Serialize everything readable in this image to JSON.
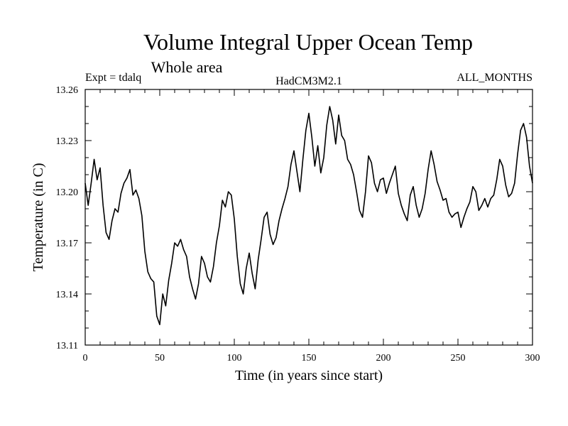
{
  "chart_data": {
    "type": "line",
    "title": "Volume Integral Upper Ocean Temp",
    "subtitle": "Whole area",
    "experiment_label": "Expt = tdalq",
    "model_label": "HadCM3M2.1",
    "months_label": "ALL_MONTHS",
    "xlabel": "Time (in years since start)",
    "ylabel": "Temperature (in C)",
    "xlim": [
      0,
      300
    ],
    "ylim": [
      13.11,
      13.26
    ],
    "xticks": [
      0,
      50,
      100,
      150,
      200,
      250,
      300
    ],
    "yticks": [
      13.11,
      13.14,
      13.17,
      13.2,
      13.23,
      13.26
    ],
    "xtick_labels": [
      "0",
      "50",
      "100",
      "150",
      "200",
      "250",
      "300"
    ],
    "ytick_labels": [
      "13.11",
      "13.14",
      "13.17",
      "13.20",
      "13.23",
      "13.26"
    ],
    "series": [
      {
        "name": "Volume Integral Upper Ocean Temp",
        "x": [
          0,
          2,
          4,
          6,
          8,
          10,
          12,
          14,
          16,
          18,
          20,
          22,
          24,
          26,
          28,
          30,
          32,
          34,
          36,
          38,
          40,
          42,
          44,
          46,
          48,
          50,
          52,
          54,
          56,
          58,
          60,
          62,
          64,
          66,
          68,
          70,
          72,
          74,
          76,
          78,
          80,
          82,
          84,
          86,
          88,
          90,
          92,
          94,
          96,
          98,
          100,
          102,
          104,
          106,
          108,
          110,
          112,
          114,
          116,
          118,
          120,
          122,
          124,
          126,
          128,
          130,
          132,
          134,
          136,
          138,
          140,
          142,
          144,
          146,
          148,
          150,
          152,
          154,
          156,
          158,
          160,
          162,
          164,
          166,
          168,
          170,
          172,
          174,
          176,
          178,
          180,
          182,
          184,
          186,
          188,
          190,
          192,
          194,
          196,
          198,
          200,
          202,
          204,
          206,
          208,
          210,
          212,
          214,
          216,
          218,
          220,
          222,
          224,
          226,
          228,
          230,
          232,
          234,
          236,
          238,
          240,
          242,
          244,
          246,
          248,
          250,
          252,
          254,
          256,
          258,
          260,
          262,
          264,
          266,
          268,
          270,
          272,
          274,
          276,
          278,
          280,
          282,
          284,
          286,
          288,
          290,
          292,
          294,
          296,
          298,
          300
        ],
        "values": [
          13.205,
          13.192,
          13.205,
          13.219,
          13.207,
          13.214,
          13.192,
          13.176,
          13.172,
          13.183,
          13.19,
          13.188,
          13.199,
          13.205,
          13.208,
          13.213,
          13.198,
          13.201,
          13.196,
          13.186,
          13.165,
          13.153,
          13.149,
          13.147,
          13.127,
          13.122,
          13.14,
          13.133,
          13.148,
          13.158,
          13.17,
          13.168,
          13.172,
          13.166,
          13.162,
          13.15,
          13.143,
          13.137,
          13.146,
          13.162,
          13.158,
          13.15,
          13.147,
          13.156,
          13.17,
          13.18,
          13.195,
          13.191,
          13.2,
          13.198,
          13.184,
          13.162,
          13.146,
          13.14,
          13.155,
          13.164,
          13.152,
          13.143,
          13.16,
          13.172,
          13.185,
          13.188,
          13.175,
          13.169,
          13.173,
          13.183,
          13.19,
          13.196,
          13.203,
          13.216,
          13.224,
          13.212,
          13.2,
          13.219,
          13.236,
          13.246,
          13.232,
          13.215,
          13.227,
          13.211,
          13.22,
          13.239,
          13.25,
          13.242,
          13.228,
          13.245,
          13.233,
          13.23,
          13.219,
          13.216,
          13.21,
          13.2,
          13.189,
          13.185,
          13.2,
          13.221,
          13.217,
          13.205,
          13.2,
          13.207,
          13.208,
          13.199,
          13.205,
          13.21,
          13.215,
          13.199,
          13.192,
          13.187,
          13.183,
          13.198,
          13.203,
          13.192,
          13.185,
          13.19,
          13.199,
          13.213,
          13.224,
          13.216,
          13.206,
          13.201,
          13.195,
          13.196,
          13.188,
          13.185,
          13.187,
          13.188,
          13.179,
          13.185,
          13.19,
          13.194,
          13.203,
          13.2,
          13.189,
          13.192,
          13.196,
          13.191,
          13.196,
          13.198,
          13.207,
          13.219,
          13.215,
          13.204,
          13.197,
          13.199,
          13.205,
          13.222,
          13.236,
          13.24,
          13.232,
          13.215,
          13.205
        ]
      }
    ]
  }
}
